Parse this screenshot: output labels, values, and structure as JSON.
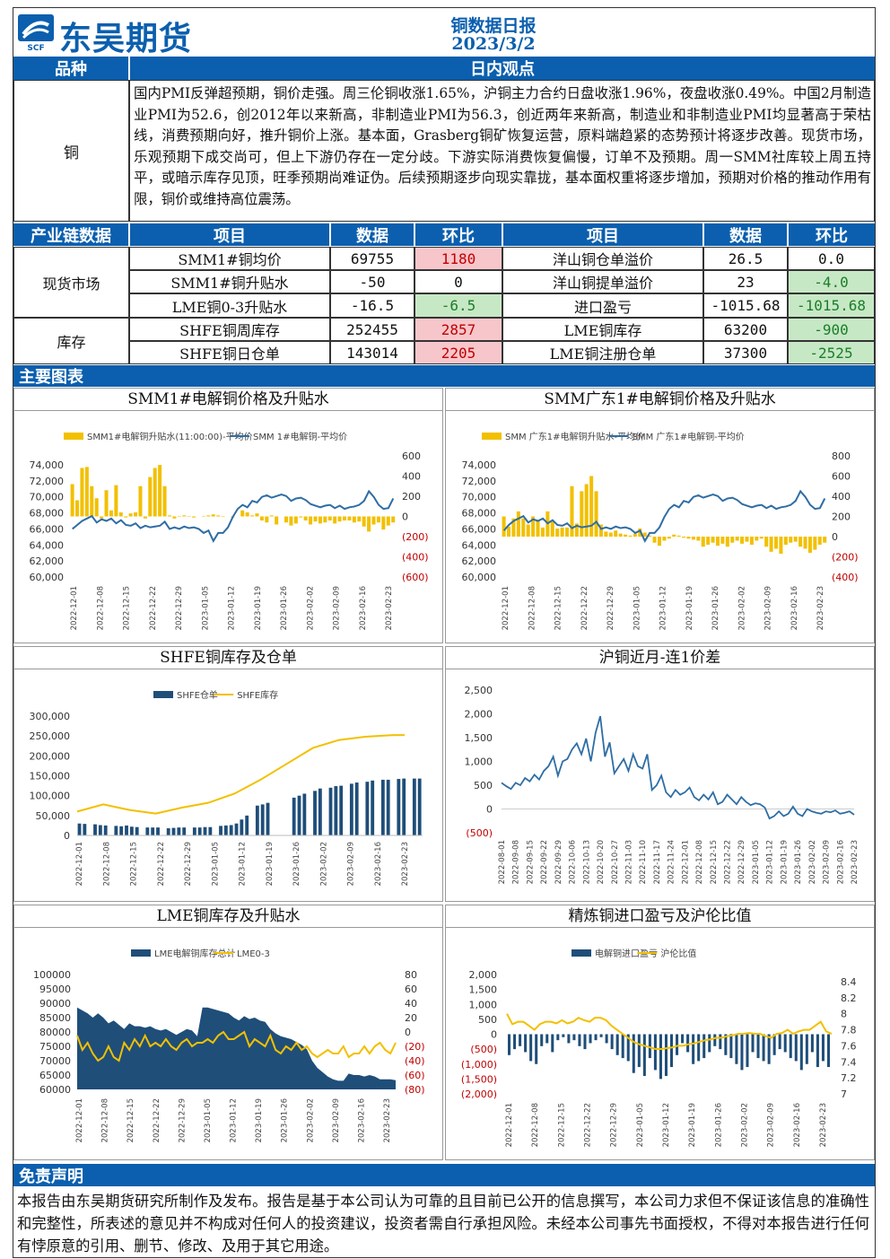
{
  "header": {
    "brand": "东吴期货",
    "logo_sub": "SCF",
    "report_title": "铜数据日报",
    "report_date": "2023/3/2"
  },
  "view_header": {
    "variety": "品种",
    "view": "日内观点"
  },
  "view": {
    "variety": "铜",
    "text": "国内PMI反弹超预期，铜价走强。周三伦铜收涨1.65%，沪铜主力合约日盘收涨1.96%，夜盘收涨0.49%。中国2月制造业PMI为52.6，创2012年以来新高，非制造业PMI为56.3，创近两年来新高，制造业和非制造业PMI均显著高于荣枯线，消费预期向好，推升铜价上涨。基本面，Grasberg铜矿恢复运营，原料端趋紧的态势预计将逐步改善。现货市场，乐观预期下成交尚可，但上下游仍存在一定分歧。下游实际消费恢复偏慢，订单不及预期。周一SMM社库较上周五持平，或暗示库存见顶，旺季预期尚难证伪。后续预期逐步向现实靠拢，基本面权重将逐步增加，预期对价格的推动作用有限，铜价或维持高位震荡。"
  },
  "table": {
    "headers": [
      "产业链数据",
      "项目",
      "数据",
      "环比",
      "项目",
      "数据",
      "环比"
    ],
    "groups": [
      "现货市场",
      "库存"
    ],
    "rows": [
      [
        "SMM1#铜均价",
        "69755",
        "1180",
        "洋山铜仓单溢价",
        "26.5",
        "0.0"
      ],
      [
        "SMM1#铜升贴水",
        "-50",
        "0",
        "洋山铜提单溢价",
        "23",
        "-4.0"
      ],
      [
        "LME铜0-3升贴水",
        "-16.5",
        "-6.5",
        "进口盈亏",
        "-1015.68",
        "-1015.68"
      ],
      [
        "SHFE铜周库存",
        "252455",
        "2857",
        "LME铜库存",
        "63200",
        "-900"
      ],
      [
        "SHFE铜日仓单",
        "143014",
        "2205",
        "LME铜注册仓单",
        "37300",
        "-2525"
      ]
    ]
  },
  "sections": {
    "charts": "主要图表",
    "disclaimer": "免责声明"
  },
  "disclaimer": "本报告由东吴期货研究所制作及发布。报告是基于本公司认为可靠的且目前已公开的信息撰写，本公司力求但不保证该信息的准确性和完整性，所表述的意见并不构成对任何人的投资建议，投资者需自行承担风险。未经本公司事先书面授权，不得对本报告进行任何有悖原意的引用、删节、修改、及用于其它用途。",
  "colors": {
    "blue": "#0b5fae",
    "navy": "#1f4e79",
    "gold": "#f2c000",
    "red": "#c00000",
    "line": "#2e6da4"
  },
  "chart_data": [
    {
      "id": "c1",
      "title": "SMM1#电解铜价格及升贴水",
      "type": "bar+line",
      "legend": [
        "SMM1#电解铜升贴水(11:00:00)-平均价",
        "SMM 1#电解铜-平均价"
      ],
      "yleft": [
        "74,000",
        "72,000",
        "70,000",
        "68,000",
        "66,000",
        "64,000",
        "62,000",
        "60,000"
      ],
      "yright": [
        "600",
        "400",
        "200",
        "0",
        "(200)",
        "(400)",
        "(600)"
      ],
      "xticks": [
        "2022-12-01",
        "2022-12-08",
        "2022-12-15",
        "2022-12-22",
        "2022-12-29",
        "2023-01-05",
        "2023-01-12",
        "2023-01-19",
        "2023-01-26",
        "2023-02-02",
        "2023-02-09",
        "2023-02-16",
        "2023-02-23"
      ],
      "ylim_line": [
        60000,
        74000
      ],
      "ylim_bar": [
        -600,
        600
      ],
      "bar": [
        320,
        160,
        480,
        490,
        300,
        180,
        -20,
        260,
        60,
        310,
        40,
        -10,
        30,
        40,
        300,
        -20,
        390,
        480,
        510,
        300,
        10,
        -20,
        5,
        10,
        5,
        -10,
        0,
        5,
        10,
        20,
        10,
        -5,
        0,
        -10,
        0,
        60,
        40,
        10,
        30,
        -40,
        -60,
        10,
        -80,
        0,
        -60,
        -90,
        -70,
        -10,
        -40,
        -80,
        -50,
        -70,
        -60,
        -40,
        -70,
        -50,
        -40,
        -40,
        -60,
        -50,
        -100,
        -150,
        -80,
        -60,
        -130,
        -90,
        -60
      ],
      "line": [
        66000,
        66500,
        67000,
        67300,
        67600,
        66800,
        67200,
        67000,
        67300,
        66700,
        67100,
        66500,
        66400,
        66700,
        66100,
        66400,
        66200,
        66300,
        66400,
        66900,
        66000,
        66200,
        66000,
        66300,
        66100,
        66200,
        66000,
        65500,
        65800,
        64500,
        65500,
        65500,
        66200,
        67500,
        68500,
        69000,
        68700,
        69500,
        69300,
        70000,
        70200,
        69900,
        70100,
        70300,
        70100,
        69500,
        69800,
        69900,
        69600,
        69100,
        68900,
        68700,
        68900,
        69000,
        68600,
        68900,
        68500,
        68700,
        68800,
        69000,
        69500,
        70700,
        70000,
        69000,
        68500,
        68600,
        69800
      ]
    },
    {
      "id": "c2",
      "title": "SMM广东1#电解铜价格及升贴水",
      "type": "bar+line",
      "legend": [
        "SMM 广东1#电解铜升贴水-平均价",
        "SMM 广东1#电解铜-平均价"
      ],
      "yleft": [
        "74,000",
        "72,000",
        "70,000",
        "68,000",
        "66,000",
        "64,000",
        "62,000",
        "60,000"
      ],
      "yright": [
        "800",
        "600",
        "400",
        "200",
        "0",
        "(200)",
        "(400)"
      ],
      "xticks": [
        "2022-12-01",
        "2022-12-08",
        "2022-12-15",
        "2022-12-22",
        "2022-12-29",
        "2023-01-05",
        "2023-01-12",
        "2023-01-19",
        "2023-01-26",
        "2023-02-02",
        "2023-02-09",
        "2023-02-16",
        "2023-02-23"
      ],
      "ylim_line": [
        60000,
        74000
      ],
      "ylim_bar": [
        -400,
        800
      ],
      "bar": [
        200,
        100,
        180,
        250,
        180,
        120,
        200,
        160,
        90,
        250,
        150,
        80,
        90,
        90,
        500,
        130,
        450,
        520,
        600,
        450,
        120,
        50,
        40,
        60,
        30,
        20,
        10,
        30,
        80,
        40,
        10,
        -60,
        -90,
        -40,
        -20,
        20,
        10,
        -10,
        -20,
        -30,
        -40,
        -100,
        -80,
        -60,
        -90,
        -70,
        -100,
        -60,
        -40,
        -70,
        -50,
        -80,
        -40,
        -20,
        -100,
        -150,
        -120,
        -170,
        -80,
        -60,
        -50,
        -100,
        -120,
        -160,
        -130,
        -80,
        -60
      ],
      "line": [
        65800,
        66500,
        67000,
        67300,
        67600,
        66800,
        67200,
        67000,
        67300,
        66700,
        67100,
        66500,
        66400,
        66700,
        66100,
        66400,
        66200,
        66300,
        66400,
        66900,
        66000,
        66200,
        66000,
        66300,
        66100,
        66200,
        66000,
        65500,
        65800,
        64500,
        65500,
        65500,
        66200,
        67500,
        68500,
        69000,
        68700,
        69500,
        69300,
        70000,
        70200,
        69900,
        70100,
        70300,
        70100,
        69500,
        69800,
        69900,
        69600,
        69100,
        68900,
        68700,
        68900,
        69000,
        68600,
        68900,
        68500,
        68700,
        68800,
        69000,
        69500,
        70700,
        70000,
        69000,
        68500,
        68600,
        69800
      ]
    },
    {
      "id": "c3",
      "title": "SHFE铜库存及仓单",
      "type": "bar+line",
      "legend": [
        "SHFE仓单",
        "SHFE库存"
      ],
      "yleft": [
        "300,000",
        "250,000",
        "200,000",
        "150,000",
        "100,000",
        "50,000",
        "0"
      ],
      "xticks": [
        "2022-12-01",
        "2022-12-08",
        "2022-12-15",
        "2022-12-22",
        "2022-12-29",
        "2023-01-05",
        "2023-01-12",
        "2023-01-19",
        "2023-01-26",
        "2023-02-02",
        "2023-02-09",
        "2023-02-16",
        "2023-02-23"
      ],
      "ylim": [
        0,
        300000
      ],
      "bar": [
        30000,
        29000,
        0,
        28000,
        26000,
        25000,
        0,
        24000,
        23000,
        25000,
        22000,
        21000,
        0,
        20000,
        20000,
        20000,
        0,
        18000,
        19000,
        20000,
        20000,
        0,
        20000,
        20000,
        21000,
        21000,
        0,
        24000,
        25000,
        26000,
        30000,
        40000,
        50000,
        0,
        75000,
        78000,
        82000,
        0,
        0,
        0,
        0,
        95000,
        100000,
        105000,
        0,
        112000,
        118000,
        0,
        120000,
        124000,
        125000,
        0,
        130000,
        133000,
        0,
        135000,
        138000,
        0,
        140000,
        140000,
        0,
        142000,
        143000,
        0,
        143000,
        143000
      ],
      "line_pts": [
        [
          0,
          60000
        ],
        [
          8,
          78000
        ],
        [
          16,
          64000
        ],
        [
          24,
          55000
        ],
        [
          32,
          70000
        ],
        [
          40,
          82000
        ],
        [
          48,
          105000
        ],
        [
          56,
          140000
        ],
        [
          64,
          180000
        ],
        [
          72,
          220000
        ],
        [
          80,
          240000
        ],
        [
          88,
          248000
        ],
        [
          96,
          252000
        ],
        [
          100,
          252455
        ]
      ]
    },
    {
      "id": "c4",
      "title": "沪铜近月-连1价差",
      "type": "line",
      "yleft": [
        "2,500",
        "2,000",
        "1,500",
        "1,000",
        "500",
        "0",
        "(500)"
      ],
      "xticks": [
        "2022-08-01",
        "2022-09-08",
        "2022-09-15",
        "2022-09-22",
        "2022-09-29",
        "2022-10-06",
        "2022-10-13",
        "2022-10-20",
        "2022-10-27",
        "2022-11-03",
        "2022-11-10",
        "2022-11-17",
        "2022-11-24",
        "2022-12-01",
        "2022-12-08",
        "2022-12-15",
        "2022-12-22",
        "2022-12-29",
        "2023-01-05",
        "2023-01-12",
        "2023-01-19",
        "2023-01-26",
        "2023-02-02",
        "2023-02-09",
        "2023-02-16",
        "2023-02-23"
      ],
      "ylim": [
        -500,
        2500
      ],
      "values": [
        550,
        480,
        420,
        550,
        500,
        650,
        580,
        720,
        620,
        800,
        900,
        1100,
        700,
        1000,
        1050,
        1250,
        1380,
        1150,
        1480,
        1000,
        1600,
        1950,
        1100,
        1400,
        750,
        900,
        1050,
        800,
        1150,
        900,
        850,
        1150,
        400,
        500,
        700,
        350,
        250,
        400,
        300,
        350,
        450,
        250,
        180,
        300,
        200,
        350,
        100,
        150,
        300,
        200,
        100,
        250,
        150,
        80,
        120,
        100,
        30,
        -200,
        -150,
        -50,
        -150,
        -100,
        50,
        -100,
        -150,
        0,
        -50,
        -80,
        -100,
        -50,
        -70,
        -30,
        -100,
        -80,
        -50,
        -120
      ]
    },
    {
      "id": "c5",
      "title": "LME铜库存及升贴水",
      "type": "area+line",
      "legend": [
        "LME电解铜库存总计",
        "LME0-3"
      ],
      "yleft": [
        "100000",
        "95000",
        "90000",
        "85000",
        "80000",
        "75000",
        "70000",
        "65000",
        "60000"
      ],
      "yright": [
        "80",
        "60",
        "40",
        "20",
        "0",
        "(20)",
        "(40)",
        "(60)",
        "(80)"
      ],
      "xticks": [
        "2022-12-01",
        "2022-12-08",
        "2022-12-15",
        "2022-12-22",
        "2022-12-29",
        "2023-01-05",
        "2023-01-12",
        "2023-01-19",
        "2023-01-26",
        "2023-02-02",
        "2023-02-09",
        "2023-02-16",
        "2023-02-23"
      ],
      "ylim_area": [
        60000,
        100000
      ],
      "ylim_line": [
        -80,
        80
      ],
      "area": [
        88500,
        87500,
        86500,
        85000,
        86500,
        85000,
        83000,
        84000,
        82500,
        81000,
        83000,
        82000,
        82000,
        81500,
        82000,
        81000,
        80500,
        81000,
        80000,
        79000,
        80000,
        81000,
        80500,
        78500,
        88500,
        88500,
        88000,
        87500,
        87000,
        86500,
        85000,
        84000,
        85500,
        84500,
        85000,
        84000,
        83500,
        81000,
        79500,
        78500,
        78000,
        77500,
        76500,
        75500,
        74000,
        70000,
        67500,
        66000,
        64500,
        63500,
        63000,
        63000,
        65500,
        65000,
        65000,
        64500,
        65000,
        64500,
        63500,
        63500,
        63500,
        63200
      ],
      "line": [
        -5,
        -25,
        -15,
        -30,
        -40,
        -35,
        -20,
        -35,
        -40,
        -15,
        -25,
        -10,
        -20,
        -5,
        -20,
        -15,
        -20,
        -10,
        -20,
        -25,
        -15,
        -10,
        -20,
        -15,
        -15,
        -10,
        -15,
        -5,
        0,
        -10,
        -10,
        -5,
        0,
        -20,
        -10,
        -15,
        -20,
        -5,
        -25,
        -30,
        -20,
        -25,
        -15,
        -25,
        -20,
        -30,
        -35,
        -30,
        -25,
        -30,
        -30,
        -20,
        -35,
        -30,
        -30,
        -20,
        -30,
        -20,
        -15,
        -25,
        -30,
        -15
      ]
    },
    {
      "id": "c6",
      "title": "精炼铜进口盈亏及沪伦比值",
      "type": "bar+line",
      "legend": [
        "电解铜进口盈亏",
        "沪伦比值"
      ],
      "yleft": [
        "2,000",
        "1,500",
        "1,000",
        "500",
        "0",
        "(500)",
        "(1,000)",
        "(1,500)",
        "(2,000)"
      ],
      "yright": [
        "8.4",
        "8.2",
        "8",
        "7.8",
        "7.6",
        "7.4",
        "7.2",
        "7"
      ],
      "xticks": [
        "2022-12-01",
        "2022-12-08",
        "2022-12-15",
        "2022-12-22",
        "2022-12-29",
        "2023-01-05",
        "2023-01-12",
        "2023-01-19",
        "2023-01-26",
        "2023-02-02",
        "2023-02-09",
        "2023-02-16",
        "2023-02-23"
      ],
      "ylim_bar": [
        -2000,
        2000
      ],
      "ylim_line": [
        7,
        8.4
      ],
      "bar": [
        -700,
        -500,
        -400,
        -600,
        -900,
        -1000,
        -400,
        -300,
        -600,
        -200,
        -100,
        -300,
        -200,
        -400,
        -500,
        -300,
        -200,
        -100,
        -300,
        -500,
        -700,
        -800,
        -900,
        -1300,
        -1100,
        -1400,
        -800,
        -1200,
        -1500,
        -1400,
        -1100,
        -700,
        -300,
        -600,
        -1000,
        -900,
        -800,
        -600,
        -400,
        -500,
        -700,
        -800,
        -1000,
        -1200,
        -1100,
        -600,
        -800,
        -900,
        -1000,
        -700,
        -500,
        -600,
        -800,
        -900,
        -1200,
        -1000,
        -600,
        -1100,
        -900,
        -1100
      ],
      "line": [
        8.0,
        7.87,
        7.9,
        7.9,
        7.85,
        7.8,
        7.87,
        7.9,
        7.9,
        7.88,
        7.92,
        7.88,
        7.9,
        7.95,
        7.92,
        7.9,
        7.95,
        7.95,
        7.92,
        7.85,
        7.8,
        7.75,
        7.7,
        7.65,
        7.62,
        7.6,
        7.58,
        7.56,
        7.56,
        7.57,
        7.58,
        7.6,
        7.6,
        7.62,
        7.63,
        7.65,
        7.67,
        7.68,
        7.7,
        7.7,
        7.72,
        7.73,
        7.75,
        7.75,
        7.76,
        7.75,
        7.75,
        7.72,
        7.7,
        7.75,
        7.76,
        7.8,
        7.75,
        7.78,
        7.8,
        7.8,
        7.85,
        7.9,
        7.78,
        7.75
      ]
    }
  ]
}
